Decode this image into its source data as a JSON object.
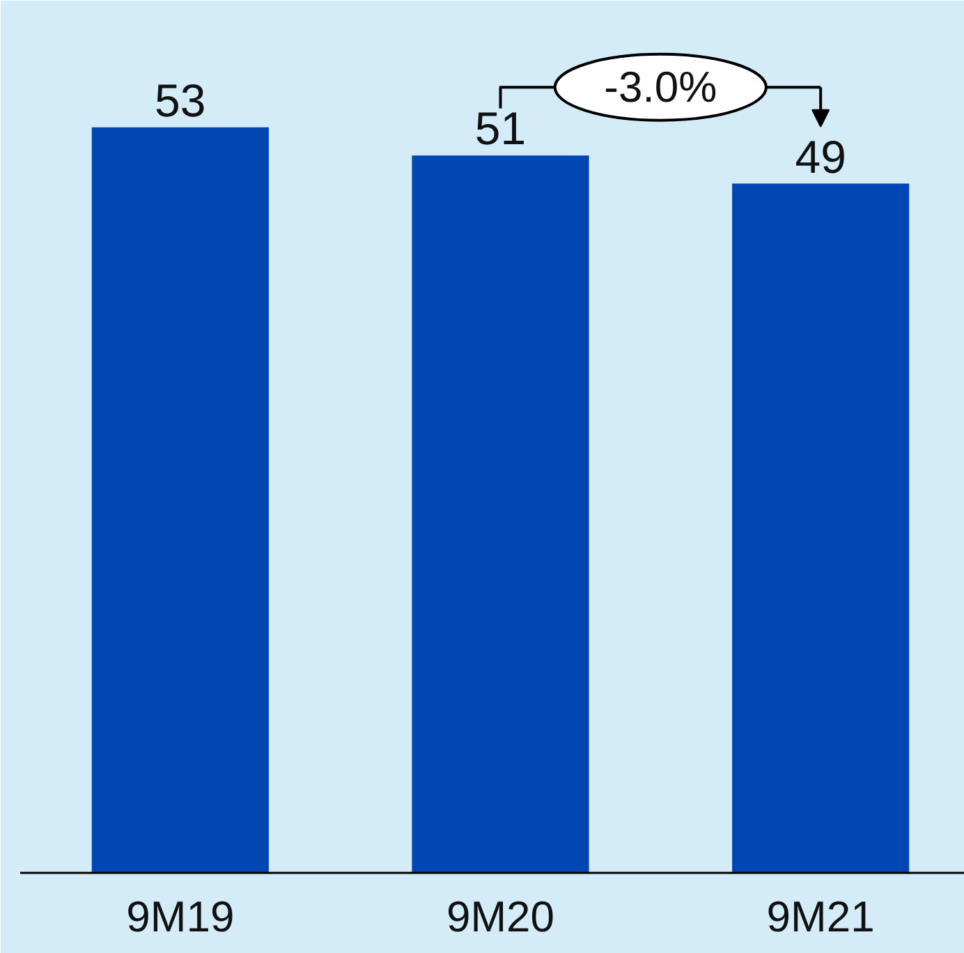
{
  "chart_data": {
    "type": "bar",
    "categories": [
      "9M19",
      "9M20",
      "9M21"
    ],
    "values": [
      53,
      51,
      49
    ],
    "color": "#0047b3",
    "ylim": [
      0,
      62
    ],
    "data_labels": true,
    "grid": false,
    "tick_labels": "x",
    "annotations": [
      "-3.0%"
    ]
  }
}
